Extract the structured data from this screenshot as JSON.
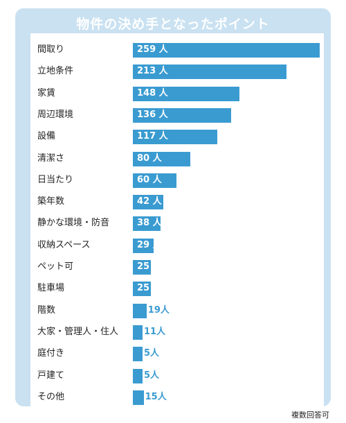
{
  "note": "複数回答可",
  "chart_data": {
    "type": "bar",
    "orientation": "horizontal",
    "title": "物件の決め手となったポイント",
    "unit": "人",
    "categories": [
      "間取り",
      "立地条件",
      "家賃",
      "周辺環境",
      "設備",
      "清潔さ",
      "日当たり",
      "築年数",
      "静かな環境・防音",
      "収納スペース",
      "ペット可",
      "駐車場",
      "階数",
      "大家・管理人・住人",
      "庭付き",
      "戸建て",
      "その他"
    ],
    "values": [
      259,
      213,
      148,
      136,
      117,
      80,
      60,
      42,
      38,
      29,
      25,
      25,
      19,
      11,
      5,
      5,
      15
    ],
    "xlim": [
      0,
      259
    ],
    "colors": {
      "bar": "#3a9bd1",
      "panel": "#c9e1f1"
    }
  }
}
